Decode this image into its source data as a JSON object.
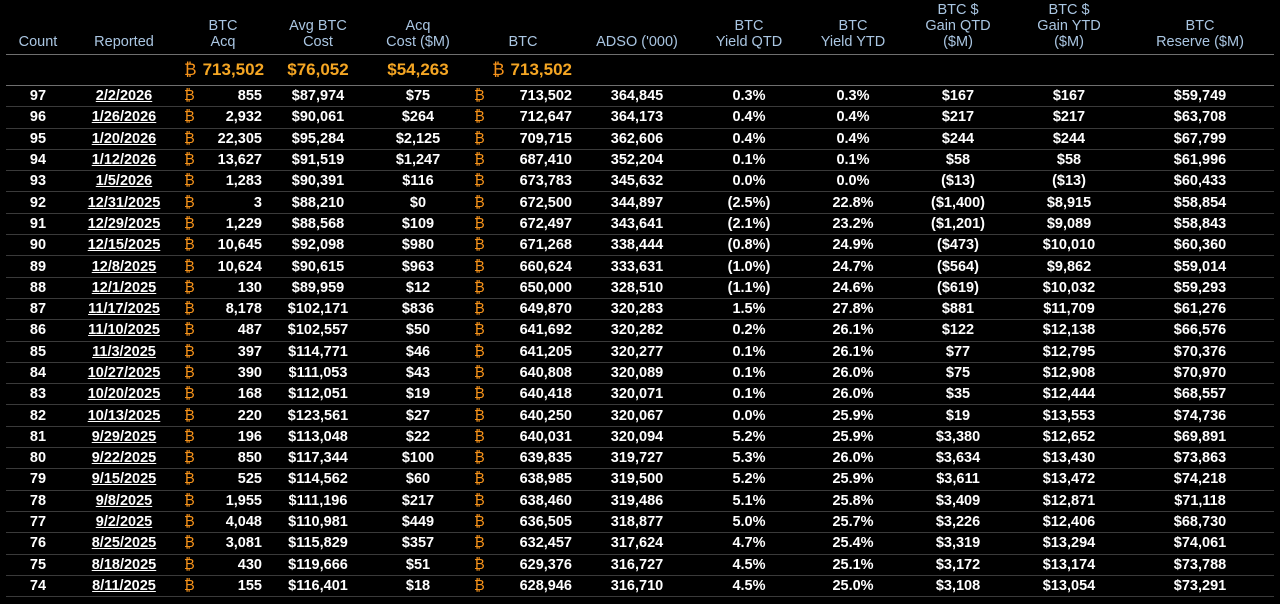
{
  "headers": {
    "count": "Count",
    "reported": "Reported",
    "btc_acq": [
      "BTC",
      "Acq"
    ],
    "avg_cost": [
      "Avg BTC",
      "Cost"
    ],
    "acq_cost": [
      "Acq",
      "Cost ($M)"
    ],
    "btc": "BTC",
    "adso": "ADSO ('000)",
    "yield_qtd": [
      "BTC",
      "Yield QTD"
    ],
    "yield_ytd": [
      "BTC",
      "Yield YTD"
    ],
    "gain_qtd": [
      "BTC $",
      "Gain QTD",
      "($M)"
    ],
    "gain_ytd": [
      "BTC $",
      "Gain YTD",
      "($M)"
    ],
    "reserve": [
      "BTC",
      "Reserve ($M)"
    ]
  },
  "btc_symbol": "₿",
  "totals": {
    "btc_acq": "713,502",
    "avg_cost": "$76,052",
    "acq_cost": "$54,263",
    "btc": "713,502"
  },
  "colors": {
    "background": "#000000",
    "header_text": "#aac6e2",
    "totals_text": "#f5a623",
    "btc_symbol": "#f7931a",
    "row_text": "#ffffff"
  },
  "rows": [
    [
      "97",
      "2/2/2026",
      "855",
      "$87,974",
      "$75",
      "713,502",
      "364,845",
      "0.3%",
      "0.3%",
      "$167",
      "$167",
      "$59,749"
    ],
    [
      "96",
      "1/26/2026",
      "2,932",
      "$90,061",
      "$264",
      "712,647",
      "364,173",
      "0.4%",
      "0.4%",
      "$217",
      "$217",
      "$63,708"
    ],
    [
      "95",
      "1/20/2026",
      "22,305",
      "$95,284",
      "$2,125",
      "709,715",
      "362,606",
      "0.4%",
      "0.4%",
      "$244",
      "$244",
      "$67,799"
    ],
    [
      "94",
      "1/12/2026",
      "13,627",
      "$91,519",
      "$1,247",
      "687,410",
      "352,204",
      "0.1%",
      "0.1%",
      "$58",
      "$58",
      "$61,996"
    ],
    [
      "93",
      "1/5/2026",
      "1,283",
      "$90,391",
      "$116",
      "673,783",
      "345,632",
      "0.0%",
      "0.0%",
      "($13)",
      "($13)",
      "$60,433"
    ],
    [
      "92",
      "12/31/2025",
      "3",
      "$88,210",
      "$0",
      "672,500",
      "344,897",
      "(2.5%)",
      "22.8%",
      "($1,400)",
      "$8,915",
      "$58,854"
    ],
    [
      "91",
      "12/29/2025",
      "1,229",
      "$88,568",
      "$109",
      "672,497",
      "343,641",
      "(2.1%)",
      "23.2%",
      "($1,201)",
      "$9,089",
      "$58,843"
    ],
    [
      "90",
      "12/15/2025",
      "10,645",
      "$92,098",
      "$980",
      "671,268",
      "338,444",
      "(0.8%)",
      "24.9%",
      "($473)",
      "$10,010",
      "$60,360"
    ],
    [
      "89",
      "12/8/2025",
      "10,624",
      "$90,615",
      "$963",
      "660,624",
      "333,631",
      "(1.0%)",
      "24.7%",
      "($564)",
      "$9,862",
      "$59,014"
    ],
    [
      "88",
      "12/1/2025",
      "130",
      "$89,959",
      "$12",
      "650,000",
      "328,510",
      "(1.1%)",
      "24.6%",
      "($619)",
      "$10,032",
      "$59,293"
    ],
    [
      "87",
      "11/17/2025",
      "8,178",
      "$102,171",
      "$836",
      "649,870",
      "320,283",
      "1.5%",
      "27.8%",
      "$881",
      "$11,709",
      "$61,276"
    ],
    [
      "86",
      "11/10/2025",
      "487",
      "$102,557",
      "$50",
      "641,692",
      "320,282",
      "0.2%",
      "26.1%",
      "$122",
      "$12,138",
      "$66,576"
    ],
    [
      "85",
      "11/3/2025",
      "397",
      "$114,771",
      "$46",
      "641,205",
      "320,277",
      "0.1%",
      "26.1%",
      "$77",
      "$12,795",
      "$70,376"
    ],
    [
      "84",
      "10/27/2025",
      "390",
      "$111,053",
      "$43",
      "640,808",
      "320,089",
      "0.1%",
      "26.0%",
      "$75",
      "$12,908",
      "$70,970"
    ],
    [
      "83",
      "10/20/2025",
      "168",
      "$112,051",
      "$19",
      "640,418",
      "320,071",
      "0.1%",
      "26.0%",
      "$35",
      "$12,444",
      "$68,557"
    ],
    [
      "82",
      "10/13/2025",
      "220",
      "$123,561",
      "$27",
      "640,250",
      "320,067",
      "0.0%",
      "25.9%",
      "$19",
      "$13,553",
      "$74,736"
    ],
    [
      "81",
      "9/29/2025",
      "196",
      "$113,048",
      "$22",
      "640,031",
      "320,094",
      "5.2%",
      "25.9%",
      "$3,380",
      "$12,652",
      "$69,891"
    ],
    [
      "80",
      "9/22/2025",
      "850",
      "$117,344",
      "$100",
      "639,835",
      "319,727",
      "5.3%",
      "26.0%",
      "$3,634",
      "$13,430",
      "$73,863"
    ],
    [
      "79",
      "9/15/2025",
      "525",
      "$114,562",
      "$60",
      "638,985",
      "319,500",
      "5.2%",
      "25.9%",
      "$3,611",
      "$13,472",
      "$74,218"
    ],
    [
      "78",
      "9/8/2025",
      "1,955",
      "$111,196",
      "$217",
      "638,460",
      "319,486",
      "5.1%",
      "25.8%",
      "$3,409",
      "$12,871",
      "$71,118"
    ],
    [
      "77",
      "9/2/2025",
      "4,048",
      "$110,981",
      "$449",
      "636,505",
      "318,877",
      "5.0%",
      "25.7%",
      "$3,226",
      "$12,406",
      "$68,730"
    ],
    [
      "76",
      "8/25/2025",
      "3,081",
      "$115,829",
      "$357",
      "632,457",
      "317,624",
      "4.7%",
      "25.4%",
      "$3,319",
      "$13,294",
      "$74,061"
    ],
    [
      "75",
      "8/18/2025",
      "430",
      "$119,666",
      "$51",
      "629,376",
      "316,727",
      "4.5%",
      "25.1%",
      "$3,172",
      "$13,174",
      "$73,788"
    ],
    [
      "74",
      "8/11/2025",
      "155",
      "$116,401",
      "$18",
      "628,946",
      "316,710",
      "4.5%",
      "25.0%",
      "$3,108",
      "$13,054",
      "$73,291"
    ]
  ]
}
